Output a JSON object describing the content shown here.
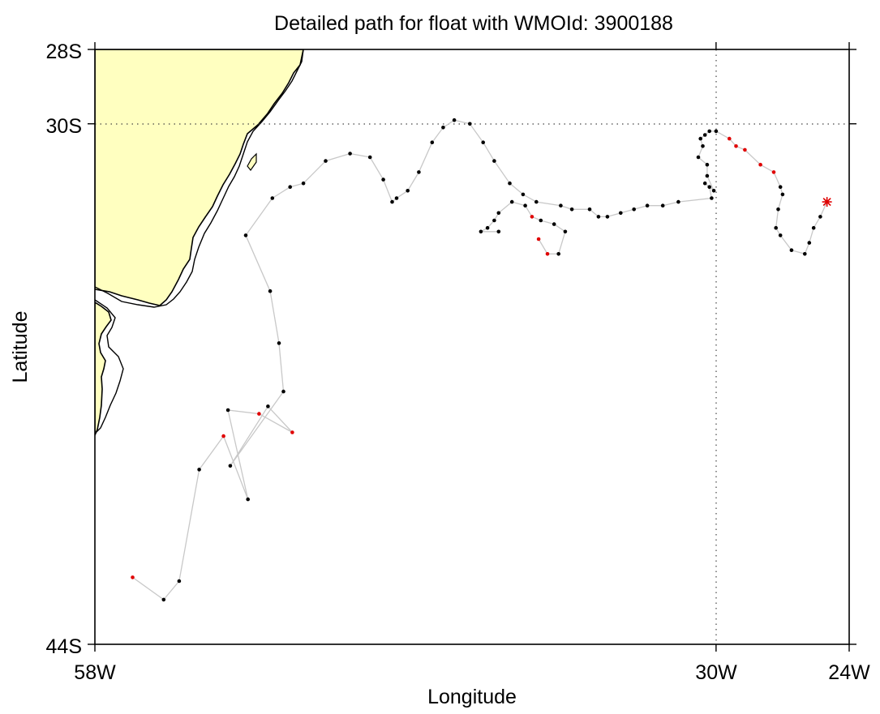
{
  "title": "Detailed path for float with WMOId: 3900188",
  "xlabel": "Longitude",
  "ylabel": "Latitude",
  "colors": {
    "land": "#ffffc0",
    "path": "#c8c8c8",
    "point": "#000000",
    "highlight": "#e00000",
    "current": "#e00000",
    "grid": "#444444"
  },
  "chart_data": {
    "type": "scatter",
    "title": "Detailed path for float with WMOId: 3900188",
    "xlabel": "Longitude",
    "ylabel": "Latitude",
    "xlim": [
      -58,
      -24
    ],
    "ylim": [
      -44,
      -28
    ],
    "x_ticks": [
      {
        "value": -58,
        "label": "58W"
      },
      {
        "value": -30,
        "label": "30W"
      },
      {
        "value": -24,
        "label": "24W"
      }
    ],
    "y_ticks": [
      {
        "value": -28,
        "label": "28S"
      },
      {
        "value": -30,
        "label": "30S"
      },
      {
        "value": -44,
        "label": "44S"
      }
    ],
    "grid_lines": {
      "x": [
        -30
      ],
      "y": [
        -30
      ]
    },
    "current_position": {
      "lon": -25.0,
      "lat": -32.1
    },
    "track": [
      [
        -56.3,
        -42.2
      ],
      [
        -54.9,
        -42.8
      ],
      [
        -54.2,
        -42.3
      ],
      [
        -53.3,
        -39.3
      ],
      [
        -52.2,
        -38.4
      ],
      [
        -51.1,
        -40.1
      ],
      [
        -52.0,
        -37.7
      ],
      [
        -50.6,
        -37.8
      ],
      [
        -49.1,
        -38.3
      ],
      [
        -50.2,
        -37.6
      ],
      [
        -51.9,
        -39.2
      ],
      [
        -49.5,
        -37.2
      ],
      [
        -49.7,
        -35.9
      ],
      [
        -50.1,
        -34.5
      ],
      [
        -51.2,
        -33.0
      ],
      [
        -50.0,
        -32.0
      ],
      [
        -49.2,
        -31.7
      ],
      [
        -48.6,
        -31.6
      ],
      [
        -47.6,
        -31.0
      ],
      [
        -46.5,
        -30.8
      ],
      [
        -45.6,
        -30.9
      ],
      [
        -45.0,
        -31.5
      ],
      [
        -44.6,
        -32.1
      ],
      [
        -44.4,
        -32.0
      ],
      [
        -43.9,
        -31.8
      ],
      [
        -43.4,
        -31.3
      ],
      [
        -42.8,
        -30.5
      ],
      [
        -42.3,
        -30.1
      ],
      [
        -41.8,
        -29.9
      ],
      [
        -41.1,
        -30.0
      ],
      [
        -40.5,
        -30.5
      ],
      [
        -40.0,
        -31.0
      ],
      [
        -39.3,
        -31.6
      ],
      [
        -38.7,
        -31.9
      ],
      [
        -38.1,
        -32.1
      ],
      [
        -37.0,
        -32.2
      ],
      [
        -36.5,
        -32.3
      ],
      [
        -35.7,
        -32.3
      ],
      [
        -35.3,
        -32.5
      ],
      [
        -34.9,
        -32.5
      ],
      [
        -34.3,
        -32.4
      ],
      [
        -33.7,
        -32.3
      ],
      [
        -33.1,
        -32.2
      ],
      [
        -32.4,
        -32.2
      ],
      [
        -31.7,
        -32.1
      ],
      [
        -30.2,
        -32.0
      ],
      [
        -30.3,
        -31.7
      ],
      [
        -30.5,
        -31.6
      ],
      [
        -30.1,
        -31.8
      ],
      [
        -30.4,
        -31.4
      ],
      [
        -30.4,
        -31.1
      ],
      [
        -30.8,
        -30.9
      ],
      [
        -30.6,
        -30.6
      ],
      [
        -30.7,
        -30.4
      ],
      [
        -30.5,
        -30.3
      ],
      [
        -30.3,
        -30.2
      ],
      [
        -30.0,
        -30.2
      ],
      [
        -29.4,
        -30.4
      ],
      [
        -29.1,
        -30.6
      ],
      [
        -28.7,
        -30.7
      ],
      [
        -28.0,
        -31.1
      ],
      [
        -27.4,
        -31.3
      ],
      [
        -27.1,
        -31.7
      ],
      [
        -27.0,
        -31.9
      ],
      [
        -27.2,
        -32.3
      ],
      [
        -27.3,
        -32.8
      ],
      [
        -27.1,
        -33.0
      ],
      [
        -26.6,
        -33.4
      ],
      [
        -26.0,
        -33.5
      ],
      [
        -25.8,
        -33.2
      ],
      [
        -25.6,
        -32.8
      ],
      [
        -25.3,
        -32.5
      ],
      [
        -25.0,
        -32.1
      ]
    ],
    "loop_segment": [
      [
        -38.0,
        -33.1
      ],
      [
        -37.6,
        -33.5
      ],
      [
        -37.1,
        -33.5
      ],
      [
        -36.8,
        -32.9
      ],
      [
        -37.3,
        -32.7
      ],
      [
        -37.9,
        -32.6
      ],
      [
        -38.3,
        -32.5
      ],
      [
        -38.6,
        -32.2
      ],
      [
        -39.2,
        -32.1
      ],
      [
        -39.8,
        -32.4
      ],
      [
        -40.0,
        -32.6
      ],
      [
        -40.3,
        -32.8
      ],
      [
        -40.6,
        -32.9
      ],
      [
        -39.8,
        -32.9
      ]
    ],
    "highlighted_points": [
      [
        -56.3,
        -42.2
      ],
      [
        -49.1,
        -38.3
      ],
      [
        -50.6,
        -37.8
      ],
      [
        -52.2,
        -38.4
      ],
      [
        -38.3,
        -32.5
      ],
      [
        -38.0,
        -33.1
      ],
      [
        -37.6,
        -33.5
      ],
      [
        -29.4,
        -30.4
      ],
      [
        -29.1,
        -30.6
      ],
      [
        -28.7,
        -30.7
      ],
      [
        -28.0,
        -31.1
      ],
      [
        -27.4,
        -31.3
      ]
    ]
  }
}
